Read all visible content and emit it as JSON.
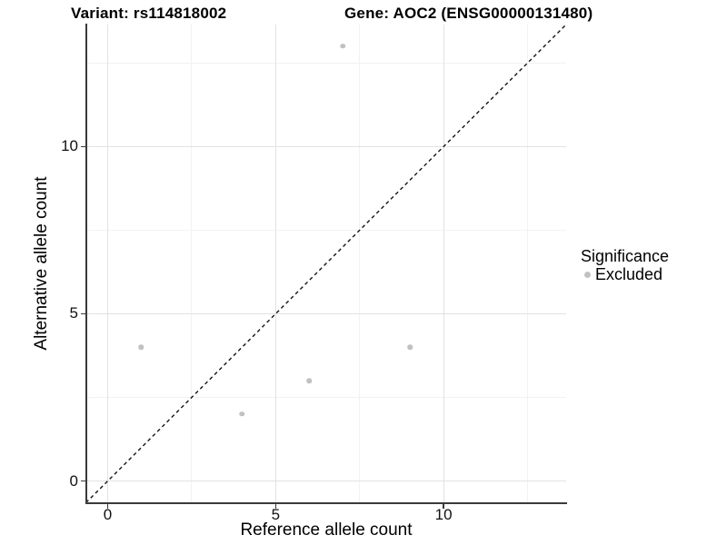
{
  "figure": {
    "title_variant": "Variant: rs114818002",
    "title_gene": "Gene: AOC2 (ENSG00000131480)"
  },
  "legend": {
    "title": "Significance",
    "items": [
      {
        "label": "Excluded",
        "marker": "circle-icon",
        "color": "#c1c1c1"
      }
    ]
  },
  "chart_data": {
    "type": "scatter",
    "title": "Variant: rs114818002 | Gene: AOC2 (ENSG00000131480)",
    "xlabel": "Reference allele count",
    "ylabel": "Alternative allele count",
    "xlim": [
      -0.65,
      13.65
    ],
    "ylim": [
      -0.65,
      13.65
    ],
    "x_ticks": [
      0,
      5,
      10
    ],
    "y_ticks": [
      0,
      5,
      10
    ],
    "x_minor_ticks": [
      2.5,
      7.5,
      12.5
    ],
    "y_minor_ticks": [
      2.5,
      7.5,
      12.5
    ],
    "grid": "major+minor",
    "legend_position": "right",
    "series": [
      {
        "name": "Excluded",
        "color": "#c1c1c1",
        "points": [
          [
            1,
            4
          ],
          [
            4,
            2
          ],
          [
            6,
            3
          ],
          [
            7,
            13
          ],
          [
            9,
            4
          ]
        ]
      }
    ],
    "identity_line": {
      "style": "dashed",
      "color": "#141414",
      "slope": 1,
      "intercept": 0
    }
  },
  "colors": {
    "background": "#ffffff",
    "grid_major": "#e2e2e2",
    "grid_minor": "#f2f2f2",
    "axis_line": "#3a3a3a"
  }
}
